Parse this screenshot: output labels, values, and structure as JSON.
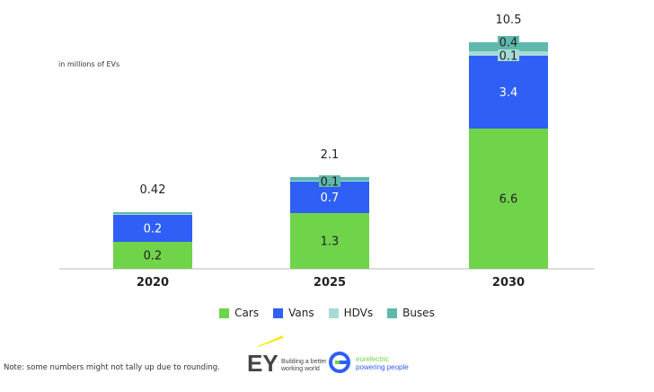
{
  "chart_data": {
    "type": "bar",
    "stacked": true,
    "unit_label": "in millions of EVs",
    "categories": [
      "2020",
      "2025",
      "2030"
    ],
    "totals": [
      "0.42",
      "2.1",
      "10.5"
    ],
    "series": [
      {
        "name": "Cars",
        "color": "#6fd44a",
        "values": [
          0.2,
          1.3,
          6.6
        ]
      },
      {
        "name": "Vans",
        "color": "#2f5ff5",
        "values": [
          0.2,
          0.7,
          3.4
        ]
      },
      {
        "name": "HDVs",
        "color": "#a6dbd6",
        "values": [
          null,
          null,
          0.1
        ]
      },
      {
        "name": "Buses",
        "color": "#5fb8ab",
        "values": [
          null,
          0.1,
          0.4
        ]
      }
    ],
    "legend_position": "bottom",
    "grid": false
  },
  "note": "Note: some numbers might not tally up due to rounding.",
  "logos": {
    "ey": {
      "mark": "EY",
      "tagline_1": "Building a better",
      "tagline_2": "working world"
    },
    "eurelectric": {
      "name": "eurelectric",
      "tagline": "powering people"
    }
  }
}
